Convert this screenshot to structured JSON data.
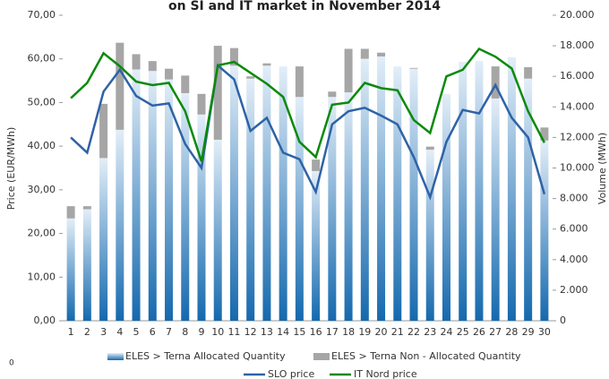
{
  "chart_data": {
    "type": "bar_line",
    "title": "on SI and IT market in November 2014",
    "ylabel": "Price (EUR/MWh)",
    "y2label": "Volume (MWh)",
    "annotation": "0",
    "categories": [
      "1",
      "2",
      "3",
      "4",
      "5",
      "6",
      "7",
      "8",
      "9",
      "10",
      "11",
      "12",
      "13",
      "14",
      "15",
      "16",
      "17",
      "18",
      "19",
      "20",
      "21",
      "22",
      "23",
      "24",
      "25",
      "26",
      "27",
      "28",
      "29",
      "30"
    ],
    "series": [
      {
        "name": "ELES > Terna Allocated Quantity",
        "kind": "bar",
        "axis": "y2",
        "color": "#1f75b8",
        "values": [
          6700,
          7300,
          10650,
          12500,
          16450,
          16350,
          15800,
          14900,
          13500,
          11850,
          16700,
          15850,
          16700,
          16650,
          14650,
          9800,
          14650,
          14950,
          17150,
          17300,
          16650,
          16500,
          11200,
          14850,
          16950,
          17000,
          14550,
          17250,
          15850,
          11800
        ]
      },
      {
        "name": "ELES > Terna Non - Allocated Quantity",
        "kind": "bar",
        "axis": "y2",
        "color": "#a6a6a6",
        "values": [
          800,
          200,
          3550,
          5700,
          1000,
          650,
          700,
          1150,
          1350,
          6150,
          1150,
          150,
          150,
          0,
          2000,
          750,
          350,
          2850,
          650,
          250,
          0,
          50,
          200,
          0,
          0,
          0,
          2100,
          0,
          750,
          850
        ]
      },
      {
        "name": "SLO price",
        "kind": "line",
        "color": "#2e63a6",
        "values": [
          42,
          38.5,
          52.5,
          57.5,
          51.5,
          49.3,
          49.8,
          40.5,
          35,
          58.5,
          55.3,
          43.5,
          46.5,
          38.5,
          37,
          29.5,
          45,
          48,
          48.8,
          47,
          45,
          37.5,
          28.3,
          41,
          48.3,
          47.5,
          54,
          46.5,
          42,
          29
        ]
      },
      {
        "name": "IT Nord price",
        "kind": "line",
        "color": "#0a8a0a",
        "values": [
          51,
          54.5,
          61.3,
          58.3,
          54.8,
          54,
          54.5,
          48,
          36.5,
          58.5,
          59.3,
          56.8,
          54.3,
          51.3,
          41,
          37.5,
          49.5,
          50,
          54.5,
          53.3,
          52.8,
          46,
          43,
          56,
          57.5,
          62.3,
          60.5,
          57.8,
          48,
          40.8
        ]
      }
    ],
    "ylim": [
      0,
      70
    ],
    "yticks": [
      {
        "value": 0,
        "label": "0,00"
      },
      {
        "value": 10,
        "label": "10,00"
      },
      {
        "value": 20,
        "label": "20,00"
      },
      {
        "value": 30,
        "label": "30,00"
      },
      {
        "value": 40,
        "label": "40,00"
      },
      {
        "value": 50,
        "label": "50,00"
      },
      {
        "value": 60,
        "label": "60,00"
      },
      {
        "value": 70,
        "label": "70,00"
      }
    ],
    "y2lim": [
      0,
      20000
    ],
    "y2ticks": [
      0,
      {
        "value": 2000,
        "label": "2.000"
      },
      {
        "value": 4000,
        "label": "4.000"
      },
      {
        "value": 6000,
        "label": "6.000"
      },
      {
        "value": 8000,
        "label": "8.000"
      },
      {
        "value": 10000,
        "label": "10.000"
      },
      {
        "value": 12000,
        "label": "12.000"
      },
      {
        "value": 14000,
        "label": "14.000"
      },
      {
        "value": 16000,
        "label": "16.000"
      },
      {
        "value": 18000,
        "label": "18.000"
      },
      {
        "value": 20000,
        "label": "20.000"
      }
    ],
    "grid": false,
    "legend": "bottom"
  }
}
